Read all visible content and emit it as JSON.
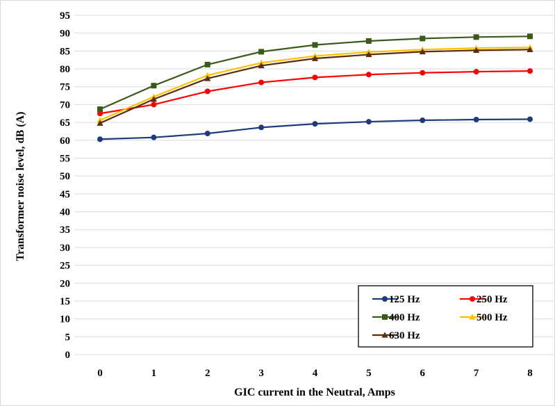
{
  "chart_data": {
    "type": "line",
    "xlabel": "GIC current in the Neutral, Amps",
    "ylabel": "Transformer noise level, dB (A)",
    "x": [
      0,
      1,
      2,
      3,
      4,
      5,
      6,
      7,
      8
    ],
    "ylim": [
      0,
      95
    ],
    "ytick_step": 5,
    "grid": "horizontal",
    "legend_position": "bottom-right",
    "series": [
      {
        "name": "125 Hz",
        "color": "#1f3a7a",
        "marker": "circle",
        "values": [
          60.3,
          60.8,
          61.9,
          63.6,
          64.6,
          65.2,
          65.6,
          65.8,
          65.9
        ]
      },
      {
        "name": "250 Hz",
        "color": "#ff0000",
        "marker": "circle",
        "values": [
          67.5,
          70.0,
          73.7,
          76.2,
          77.6,
          78.4,
          78.9,
          79.2,
          79.4
        ]
      },
      {
        "name": "400 Hz",
        "color": "#3a5a1a",
        "marker": "square",
        "values": [
          68.7,
          75.3,
          81.2,
          84.8,
          86.7,
          87.8,
          88.5,
          88.9,
          89.1
        ]
      },
      {
        "name": "500 Hz",
        "color": "#ffc000",
        "marker": "triangle",
        "values": [
          65.6,
          72.2,
          78.2,
          81.7,
          83.6,
          84.7,
          85.4,
          85.8,
          86.0
        ]
      },
      {
        "name": "630 Hz",
        "color": "#5a2d0c",
        "marker": "triangle",
        "values": [
          64.8,
          71.5,
          77.3,
          80.9,
          82.9,
          84.0,
          84.8,
          85.2,
          85.4
        ]
      }
    ]
  }
}
